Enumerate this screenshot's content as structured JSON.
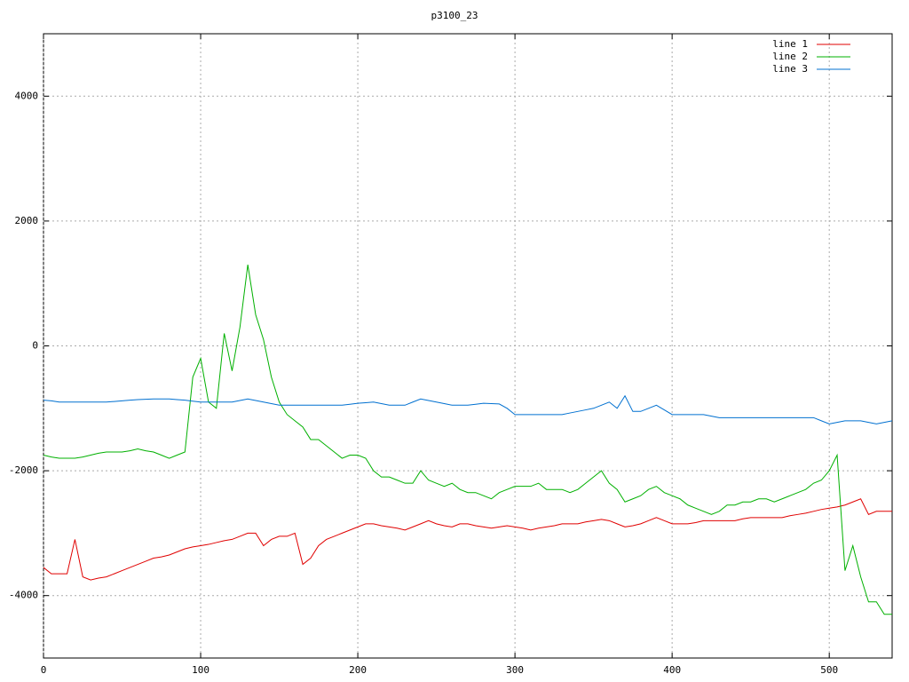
{
  "chart_data": {
    "type": "line",
    "title": "p3100_23",
    "x": [
      0,
      5,
      10,
      15,
      20,
      25,
      30,
      35,
      40,
      45,
      50,
      55,
      60,
      65,
      70,
      75,
      80,
      85,
      90,
      95,
      100,
      105,
      110,
      115,
      120,
      125,
      130,
      135,
      140,
      145,
      150,
      155,
      160,
      165,
      170,
      175,
      180,
      185,
      190,
      195,
      200,
      205,
      210,
      215,
      220,
      225,
      230,
      235,
      240,
      245,
      250,
      255,
      260,
      265,
      270,
      275,
      280,
      285,
      290,
      295,
      300,
      305,
      310,
      315,
      320,
      325,
      330,
      335,
      340,
      345,
      350,
      355,
      360,
      365,
      370,
      375,
      380,
      385,
      390,
      395,
      400,
      405,
      410,
      415,
      420,
      425,
      430,
      435,
      440,
      445,
      450,
      455,
      460,
      465,
      470,
      475,
      480,
      485,
      490,
      495,
      500,
      505,
      510,
      515,
      520,
      525,
      530,
      535,
      540
    ],
    "series": [
      {
        "name": "line 1",
        "color": "#e00000",
        "values": [
          -3550,
          -3650,
          -3650,
          -3650,
          -3100,
          -3700,
          -3750,
          -3720,
          -3700,
          -3650,
          -3600,
          -3550,
          -3500,
          -3450,
          -3400,
          -3380,
          -3350,
          -3300,
          -3250,
          -3220,
          -3200,
          -3180,
          -3150,
          -3120,
          -3100,
          -3050,
          -3000,
          -3000,
          -3200,
          -3100,
          -3050,
          -3050,
          -3000,
          -3500,
          -3400,
          -3200,
          -3100,
          -3050,
          -3000,
          -2950,
          -2900,
          -2850,
          -2850,
          -2880,
          -2900,
          -2920,
          -2950,
          -2900,
          -2850,
          -2800,
          -2850,
          -2880,
          -2900,
          -2850,
          -2850,
          -2880,
          -2900,
          -2920,
          -2900,
          -2880,
          -2900,
          -2920,
          -2950,
          -2920,
          -2900,
          -2880,
          -2850,
          -2850,
          -2850,
          -2820,
          -2800,
          -2780,
          -2800,
          -2850,
          -2900,
          -2880,
          -2850,
          -2800,
          -2750,
          -2800,
          -2850,
          -2850,
          -2850,
          -2830,
          -2800,
          -2800,
          -2800,
          -2800,
          -2800,
          -2770,
          -2750,
          -2750,
          -2750,
          -2750,
          -2750,
          -2720,
          -2700,
          -2680,
          -2650,
          -2620,
          -2600,
          -2580,
          -2550,
          -2500,
          -2450,
          -2700,
          -2650,
          -2650,
          -2650
        ]
      },
      {
        "name": "line 2",
        "color": "#00b000",
        "values": [
          -1750,
          -1780,
          -1800,
          -1800,
          -1800,
          -1780,
          -1750,
          -1720,
          -1700,
          -1700,
          -1700,
          -1680,
          -1650,
          -1680,
          -1700,
          -1750,
          -1800,
          -1750,
          -1700,
          -500,
          -200,
          -900,
          -1000,
          200,
          -400,
          300,
          1300,
          500,
          100,
          -500,
          -900,
          -1100,
          -1200,
          -1300,
          -1500,
          -1500,
          -1600,
          -1700,
          -1800,
          -1750,
          -1750,
          -1800,
          -2000,
          -2100,
          -2100,
          -2150,
          -2200,
          -2200,
          -2000,
          -2150,
          -2200,
          -2250,
          -2200,
          -2300,
          -2350,
          -2350,
          -2400,
          -2450,
          -2350,
          -2300,
          -2250,
          -2250,
          -2250,
          -2200,
          -2300,
          -2300,
          -2300,
          -2350,
          -2300,
          -2200,
          -2100,
          -2000,
          -2200,
          -2300,
          -2500,
          -2450,
          -2400,
          -2300,
          -2250,
          -2350,
          -2400,
          -2450,
          -2550,
          -2600,
          -2650,
          -2700,
          -2650,
          -2550,
          -2550,
          -2500,
          -2500,
          -2450,
          -2450,
          -2500,
          -2450,
          -2400,
          -2350,
          -2300,
          -2200,
          -2150,
          -2000,
          -1750,
          -3600,
          -3200,
          -3700,
          -4100,
          -4100,
          -4300,
          -4300
        ]
      },
      {
        "name": "line 3",
        "color": "#0070d0",
        "values": [
          -870,
          -880,
          -900,
          -900,
          -900,
          -900,
          -900,
          -900,
          -900,
          -890,
          -880,
          -870,
          -860,
          -855,
          -850,
          -850,
          -850,
          -860,
          -870,
          -885,
          -900,
          -900,
          -900,
          -900,
          -900,
          -875,
          -850,
          -875,
          -900,
          -925,
          -950,
          -950,
          -950,
          -950,
          -950,
          -950,
          -950,
          -950,
          -950,
          -935,
          -920,
          -910,
          -900,
          -925,
          -950,
          -950,
          -950,
          -900,
          -850,
          -875,
          -900,
          -925,
          -950,
          -950,
          -950,
          -935,
          -920,
          -925,
          -930,
          -1000,
          -1100,
          -1100,
          -1100,
          -1100,
          -1100,
          -1100,
          -1100,
          -1075,
          -1050,
          -1025,
          -1000,
          -950,
          -900,
          -1000,
          -800,
          -1050,
          -1050,
          -1000,
          -950,
          -1025,
          -1100,
          -1100,
          -1100,
          -1100,
          -1100,
          -1125,
          -1150,
          -1150,
          -1150,
          -1150,
          -1150,
          -1150,
          -1150,
          -1150,
          -1150,
          -1150,
          -1150,
          -1150,
          -1150,
          -1200,
          -1250,
          -1225,
          -1200,
          -1200,
          -1200,
          -1225,
          -1250,
          -1225,
          -1200
        ]
      }
    ],
    "xlim": [
      0,
      540
    ],
    "ylim": [
      -5000,
      5000
    ],
    "xticks": [
      0,
      100,
      200,
      300,
      400,
      500
    ],
    "yticks": [
      -4000,
      -2000,
      0,
      2000,
      4000
    ],
    "grid": true,
    "legend": "top-right"
  }
}
